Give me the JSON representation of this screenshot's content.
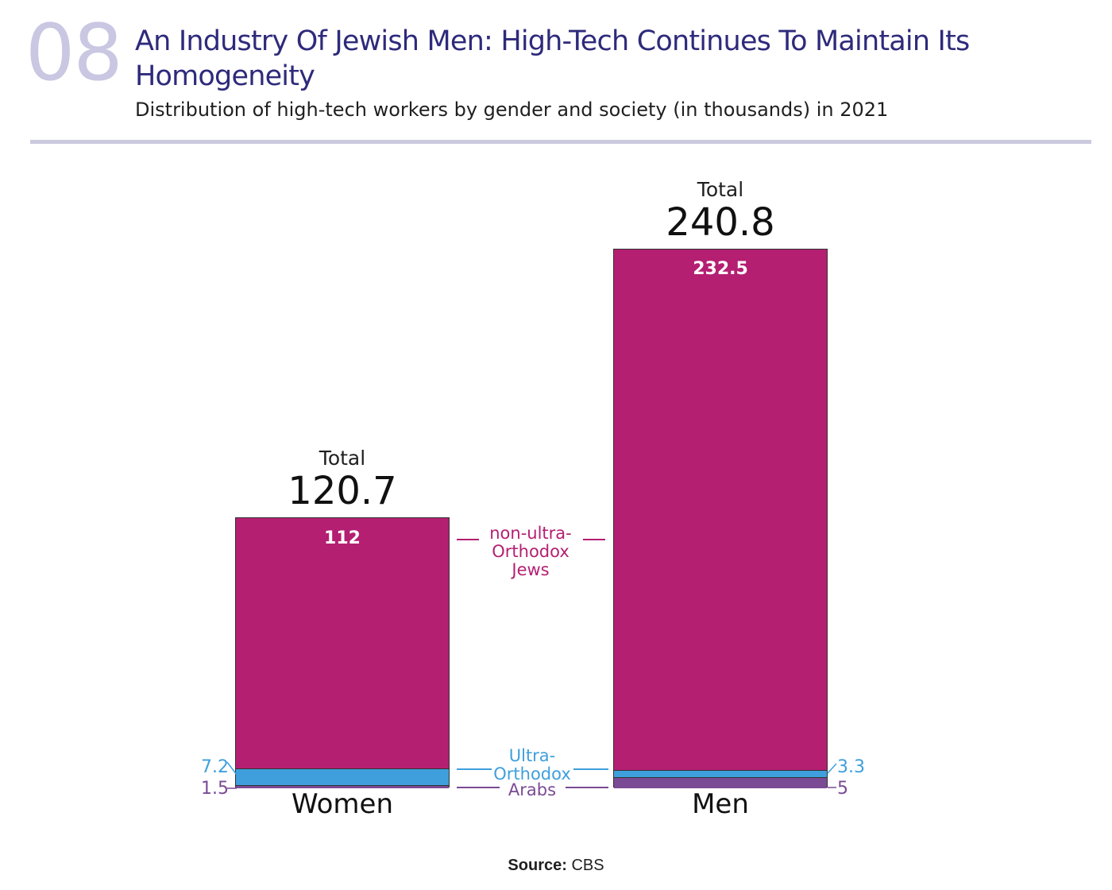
{
  "header": {
    "number": "08",
    "title": "An Industry Of Jewish Men: High-Tech Continues To Maintain Its Homogeneity",
    "subtitle": "Distribution of high-tech workers by gender and society (in thousands) in 2021"
  },
  "source": {
    "label": "Source:",
    "value": "CBS"
  },
  "colors": {
    "non_ultra_orthodox": "#b41f72",
    "ultra_orthodox": "#3f9fdc",
    "arabs": "#7b4a94"
  },
  "chart_data": {
    "type": "bar",
    "stacked": true,
    "units": "thousands",
    "categories": [
      "Women",
      "Men"
    ],
    "series": [
      {
        "name": "non-ultra-Orthodox Jews",
        "values": [
          112,
          232.5
        ]
      },
      {
        "name": "Ultra-Orthodox",
        "values": [
          7.2,
          3.3
        ]
      },
      {
        "name": "Arabs",
        "values": [
          1.5,
          5
        ]
      }
    ],
    "totals": [
      120.7,
      240.8
    ],
    "total_label": "Total",
    "total_display": [
      "120.7",
      "240.8"
    ],
    "value_labels": {
      "non_ultra_orthodox": [
        "112",
        "232.5"
      ],
      "ultra_orthodox": [
        "7.2",
        "3.3"
      ],
      "arabs": [
        "1.5",
        "5"
      ]
    },
    "legend": {
      "non_ultra_orthodox": [
        "non-ultra-",
        "Orthodox",
        "Jews"
      ],
      "ultra_orthodox": [
        "Ultra-",
        "Orthodox"
      ],
      "arabs": [
        "Arabs"
      ]
    }
  }
}
